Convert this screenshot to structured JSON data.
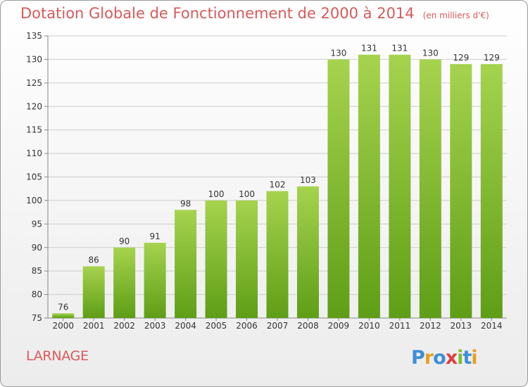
{
  "title": "Dotation Globale de Fonctionnement de 2000 à 2014",
  "subtitle": "(en milliers d'€)",
  "commune": "LARNAGE",
  "logo_text": "Proxiti",
  "colors": {
    "title": "#d85a5a",
    "bar_top": "#a6d34e",
    "bar_bottom": "#5e9e16",
    "grid": "#cccccc"
  },
  "chart_data": {
    "type": "bar",
    "title": "Dotation Globale de Fonctionnement de 2000 à 2014",
    "subtitle": "(en milliers d'€)",
    "xlabel": "",
    "ylabel": "",
    "categories": [
      "2000",
      "2001",
      "2002",
      "2003",
      "2004",
      "2005",
      "2006",
      "2007",
      "2008",
      "2009",
      "2010",
      "2011",
      "2012",
      "2013",
      "2014"
    ],
    "values": [
      76,
      86,
      90,
      91,
      98,
      100,
      100,
      102,
      103,
      130,
      131,
      131,
      130,
      129,
      129
    ],
    "ylim": [
      75,
      135
    ],
    "yticks": [
      75,
      80,
      85,
      90,
      95,
      100,
      105,
      110,
      115,
      120,
      125,
      130,
      135
    ],
    "grid": true,
    "data_labels": true
  }
}
